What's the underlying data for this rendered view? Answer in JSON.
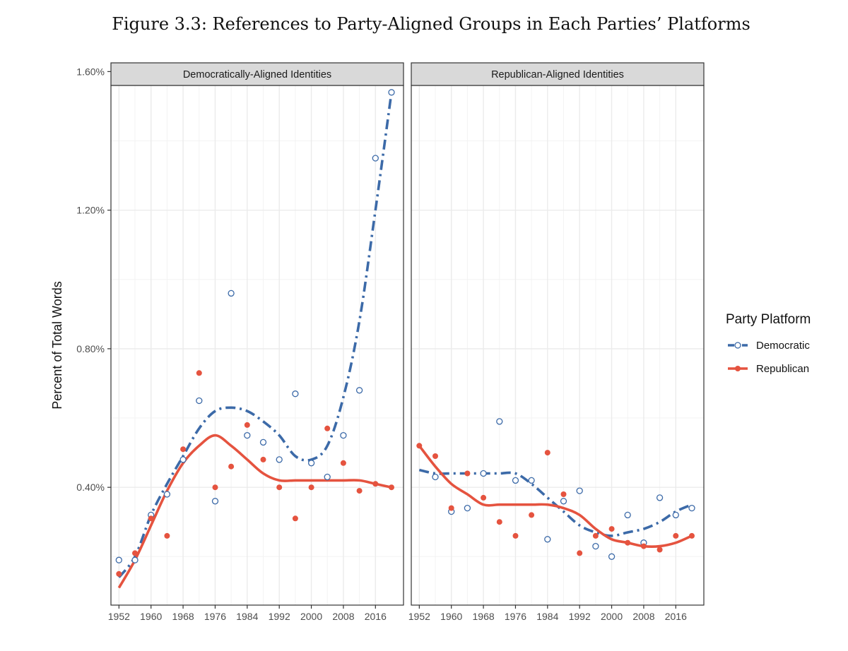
{
  "figure_title": "Figure 3.3: References to Party-Aligned Groups in Each Parties’ Platforms",
  "colors": {
    "democratic": "#3c6aa8",
    "republican": "#e5533f",
    "strip": "#d9d9d9",
    "grid": "#ebebeb"
  },
  "chart_data": {
    "type": "scatter",
    "ylabel": "Percent of Total Words",
    "ylim": [
      0.0006,
      0.0156
    ],
    "y_ticks": [
      0.004,
      0.008,
      0.012,
      0.016
    ],
    "y_tick_labels": [
      "0.40%",
      "0.80%",
      "1.20%",
      "1.60%"
    ],
    "xlim": [
      1950,
      2023
    ],
    "x_ticks": [
      1952,
      1960,
      1968,
      1976,
      1984,
      1992,
      2000,
      2008,
      2016
    ],
    "x_tick_labels": [
      "1952",
      "1960",
      "1968",
      "1976",
      "1984",
      "1992",
      "2000",
      "2008",
      "2016"
    ],
    "grid": true,
    "legend": {
      "title": "Party Platform",
      "position": "right",
      "entries": [
        {
          "name": "Democratic",
          "style": "open-circle, dash-dot line"
        },
        {
          "name": "Republican",
          "style": "filled circle, solid line"
        }
      ]
    },
    "panels": [
      {
        "strip_label": "Democratically-Aligned Identities",
        "series": [
          {
            "name": "Democratic",
            "points": [
              [
                1952,
                0.0019
              ],
              [
                1956,
                0.0019
              ],
              [
                1960,
                0.0032
              ],
              [
                1964,
                0.0038
              ],
              [
                1968,
                0.0048
              ],
              [
                1972,
                0.0065
              ],
              [
                1976,
                0.0036
              ],
              [
                1980,
                0.0096
              ],
              [
                1984,
                0.0055
              ],
              [
                1988,
                0.0053
              ],
              [
                1992,
                0.0048
              ],
              [
                1996,
                0.0067
              ],
              [
                2000,
                0.0047
              ],
              [
                2004,
                0.0043
              ],
              [
                2008,
                0.0055
              ],
              [
                2012,
                0.0068
              ],
              [
                2016,
                0.0135
              ],
              [
                2020,
                0.0154
              ]
            ],
            "smooth": [
              [
                1952,
                0.0014
              ],
              [
                1956,
                0.002
              ],
              [
                1960,
                0.0032
              ],
              [
                1964,
                0.0041
              ],
              [
                1968,
                0.0049
              ],
              [
                1972,
                0.0057
              ],
              [
                1976,
                0.0062
              ],
              [
                1980,
                0.0063
              ],
              [
                1984,
                0.0062
              ],
              [
                1988,
                0.0059
              ],
              [
                1992,
                0.0055
              ],
              [
                1996,
                0.0049
              ],
              [
                2000,
                0.0048
              ],
              [
                2004,
                0.0052
              ],
              [
                2008,
                0.0066
              ],
              [
                2012,
                0.0088
              ],
              [
                2016,
                0.012
              ],
              [
                2020,
                0.0154
              ]
            ]
          },
          {
            "name": "Republican",
            "points": [
              [
                1952,
                0.0015
              ],
              [
                1956,
                0.0021
              ],
              [
                1960,
                0.0031
              ],
              [
                1964,
                0.0026
              ],
              [
                1968,
                0.0051
              ],
              [
                1972,
                0.0073
              ],
              [
                1976,
                0.004
              ],
              [
                1980,
                0.0046
              ],
              [
                1984,
                0.0058
              ],
              [
                1988,
                0.0048
              ],
              [
                1992,
                0.004
              ],
              [
                1996,
                0.0031
              ],
              [
                2000,
                0.004
              ],
              [
                2004,
                0.0057
              ],
              [
                2008,
                0.0047
              ],
              [
                2012,
                0.0039
              ],
              [
                2016,
                0.0041
              ],
              [
                2020,
                0.004
              ]
            ],
            "smooth": [
              [
                1952,
                0.0011
              ],
              [
                1956,
                0.0019
              ],
              [
                1960,
                0.0029
              ],
              [
                1964,
                0.0039
              ],
              [
                1968,
                0.0047
              ],
              [
                1972,
                0.0052
              ],
              [
                1976,
                0.0055
              ],
              [
                1980,
                0.0052
              ],
              [
                1984,
                0.0048
              ],
              [
                1988,
                0.0044
              ],
              [
                1992,
                0.0042
              ],
              [
                1996,
                0.0042
              ],
              [
                2000,
                0.0042
              ],
              [
                2004,
                0.0042
              ],
              [
                2008,
                0.0042
              ],
              [
                2012,
                0.0042
              ],
              [
                2016,
                0.0041
              ],
              [
                2020,
                0.004
              ]
            ]
          }
        ]
      },
      {
        "strip_label": "Republican-Aligned Identities",
        "series": [
          {
            "name": "Democratic",
            "points": [
              [
                1956,
                0.0043
              ],
              [
                1960,
                0.0033
              ],
              [
                1964,
                0.0034
              ],
              [
                1968,
                0.0044
              ],
              [
                1972,
                0.0059
              ],
              [
                1976,
                0.0042
              ],
              [
                1980,
                0.0042
              ],
              [
                1984,
                0.0025
              ],
              [
                1988,
                0.0036
              ],
              [
                1992,
                0.0039
              ],
              [
                1996,
                0.0023
              ],
              [
                2000,
                0.002
              ],
              [
                2004,
                0.0032
              ],
              [
                2008,
                0.0024
              ],
              [
                2012,
                0.0037
              ],
              [
                2016,
                0.0032
              ],
              [
                2020,
                0.0034
              ]
            ],
            "smooth": [
              [
                1952,
                0.0045
              ],
              [
                1956,
                0.0044
              ],
              [
                1960,
                0.0044
              ],
              [
                1964,
                0.0044
              ],
              [
                1968,
                0.0044
              ],
              [
                1972,
                0.0044
              ],
              [
                1976,
                0.0044
              ],
              [
                1980,
                0.0041
              ],
              [
                1984,
                0.0037
              ],
              [
                1988,
                0.0033
              ],
              [
                1992,
                0.0029
              ],
              [
                1996,
                0.0027
              ],
              [
                2000,
                0.0026
              ],
              [
                2004,
                0.0027
              ],
              [
                2008,
                0.0028
              ],
              [
                2012,
                0.003
              ],
              [
                2016,
                0.0033
              ],
              [
                2020,
                0.0035
              ]
            ]
          },
          {
            "name": "Republican",
            "points": [
              [
                1952,
                0.0052
              ],
              [
                1956,
                0.0049
              ],
              [
                1960,
                0.0034
              ],
              [
                1964,
                0.0044
              ],
              [
                1968,
                0.0037
              ],
              [
                1972,
                0.003
              ],
              [
                1976,
                0.0026
              ],
              [
                1980,
                0.0032
              ],
              [
                1984,
                0.005
              ],
              [
                1988,
                0.0038
              ],
              [
                1992,
                0.0021
              ],
              [
                1996,
                0.0026
              ],
              [
                2000,
                0.0028
              ],
              [
                2004,
                0.0024
              ],
              [
                2008,
                0.0023
              ],
              [
                2012,
                0.0022
              ],
              [
                2016,
                0.0026
              ],
              [
                2020,
                0.0026
              ]
            ],
            "smooth": [
              [
                1952,
                0.0052
              ],
              [
                1956,
                0.0046
              ],
              [
                1960,
                0.0041
              ],
              [
                1964,
                0.0038
              ],
              [
                1968,
                0.0035
              ],
              [
                1972,
                0.0035
              ],
              [
                1976,
                0.0035
              ],
              [
                1980,
                0.0035
              ],
              [
                1984,
                0.0035
              ],
              [
                1988,
                0.0034
              ],
              [
                1992,
                0.0032
              ],
              [
                1996,
                0.0028
              ],
              [
                2000,
                0.0025
              ],
              [
                2004,
                0.0024
              ],
              [
                2008,
                0.0023
              ],
              [
                2012,
                0.0023
              ],
              [
                2016,
                0.0024
              ],
              [
                2020,
                0.0026
              ]
            ]
          }
        ]
      }
    ]
  }
}
